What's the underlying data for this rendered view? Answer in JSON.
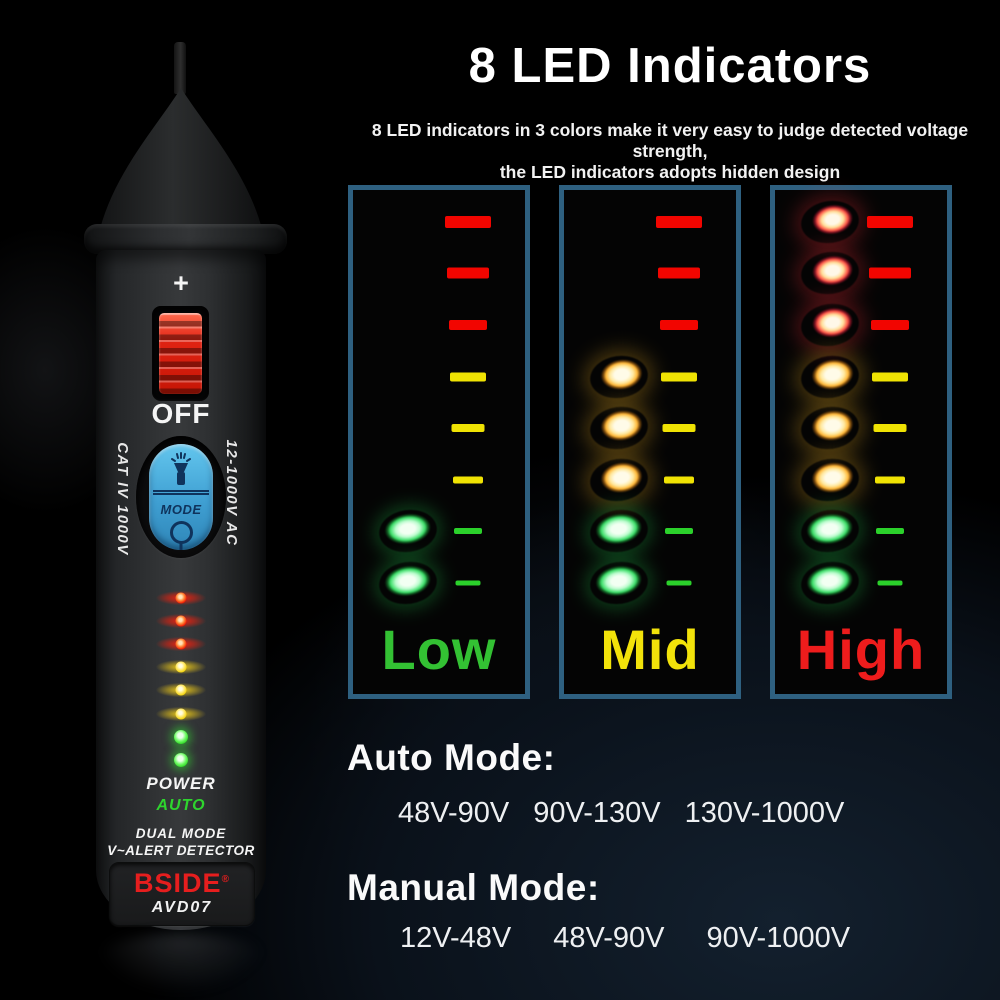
{
  "header": {
    "title": "8 LED Indicators",
    "subtitle_line1": "8 LED indicators in 3 colors make it very easy to judge detected voltage strength,",
    "subtitle_line2": "the LED indicators adopts hidden design"
  },
  "led_rows": [
    "red",
    "red",
    "red",
    "yellow",
    "yellow",
    "yellow",
    "green",
    "green"
  ],
  "led_palette": {
    "red": "#f20500",
    "yellow": "#f0e303",
    "green": "#2bd12b"
  },
  "panels": [
    {
      "label": "Low",
      "color": "#33c133",
      "lit": [
        false,
        false,
        false,
        false,
        false,
        false,
        true,
        true
      ]
    },
    {
      "label": "Mid",
      "color": "#f2e20a",
      "lit": [
        false,
        false,
        false,
        true,
        true,
        true,
        true,
        true
      ]
    },
    {
      "label": "High",
      "color": "#ee1c1c",
      "lit": [
        true,
        true,
        true,
        true,
        true,
        true,
        true,
        true
      ]
    }
  ],
  "modes": {
    "auto": {
      "heading": "Auto Mode:",
      "ranges": [
        "48V-90V",
        "90V-130V",
        "130V-1000V"
      ]
    },
    "manual": {
      "heading": "Manual Mode:",
      "ranges": [
        "12V-48V",
        "48V-90V",
        "90V-1000V"
      ]
    }
  },
  "device": {
    "plus": "+",
    "off": "OFF",
    "mode_button": "MODE",
    "left_side": "CAT IV 1000V",
    "right_side": "12-1000V AC",
    "power": "POWER",
    "auto": "AUTO",
    "auto_color": "#2ed52e",
    "line1": "DUAL MODE",
    "line2": "V~ALERT DETECTOR",
    "brand": "BSIDE",
    "brand_reg": "®",
    "brand_color": "#e61e1e",
    "model": "AVD07"
  }
}
